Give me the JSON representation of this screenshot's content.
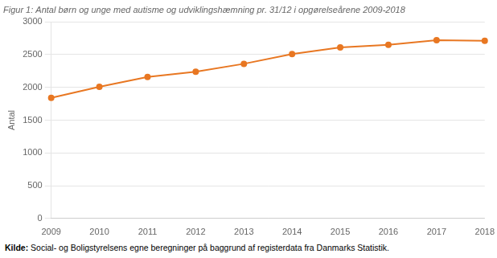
{
  "chart_data": {
    "type": "line",
    "title": "Figur 1: Antal børn og unge med autisme og udviklingshæmning pr. 31/12 i opgørelseårene 2009-2018",
    "caption_label": "Kilde:",
    "caption": "Social- og Boligstyrelsens egne beregninger på baggrund af registerdata fra Danmarks Statistik.",
    "y_label": "Antal",
    "categories": [
      "2009",
      "2010",
      "2011",
      "2012",
      "2013",
      "2014",
      "2015",
      "2016",
      "2017",
      "2018"
    ],
    "values": [
      1840,
      2010,
      2160,
      2240,
      2360,
      2510,
      2610,
      2650,
      2720,
      2710
    ],
    "color": "#E87722",
    "marker": "circle",
    "ylim": [
      0,
      3000
    ],
    "yticks": [
      0,
      500,
      1000,
      1500,
      2000,
      2500,
      3000
    ],
    "grid": true
  }
}
